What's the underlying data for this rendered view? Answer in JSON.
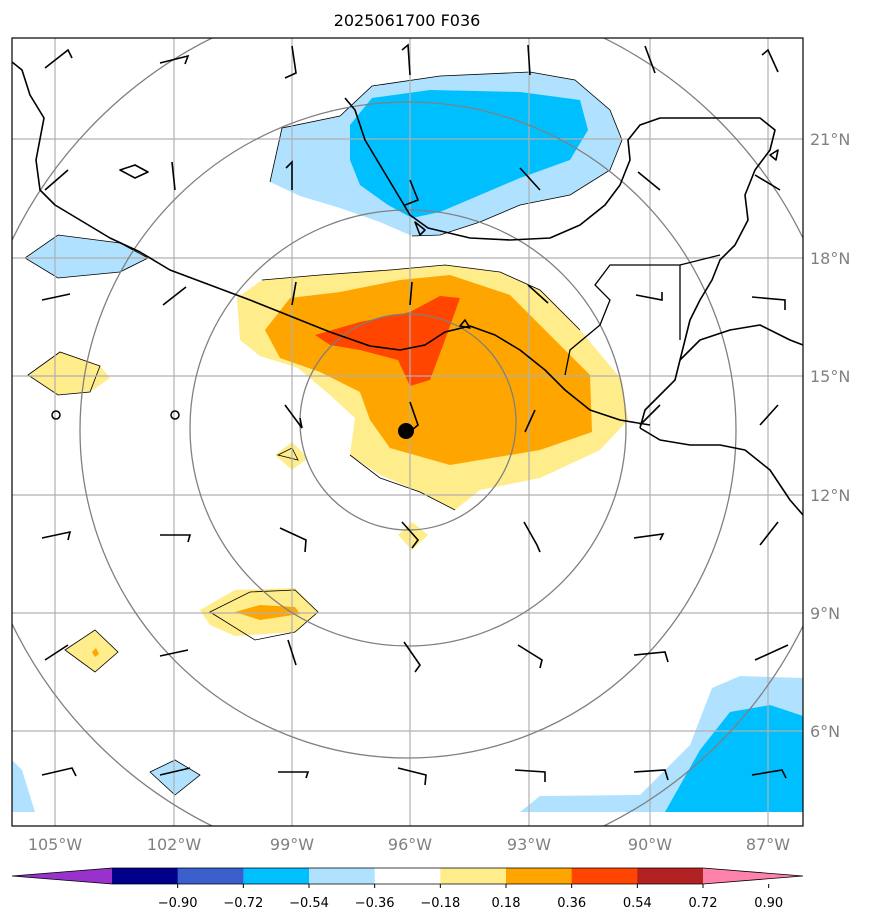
{
  "title": "2025061700 F036",
  "lon_labels": [
    "105°W",
    "102°W",
    "99°W",
    "96°W",
    "93°W",
    "90°W",
    "87°W"
  ],
  "lat_labels": [
    "21°N",
    "18°N",
    "15°N",
    "12°N",
    "9°N",
    "6°N"
  ],
  "colorbar": {
    "ticks": [
      "−0.90",
      "−0.72",
      "−0.54",
      "−0.36",
      "−0.18",
      "0.18",
      "0.36",
      "0.54",
      "0.72",
      "0.90"
    ],
    "colors": [
      "#9932cc",
      "#00008b",
      "#3a5fcd",
      "#00bfff",
      "#b0e2ff",
      "#ffffff",
      "#ffec8b",
      "#ffa500",
      "#ff4500",
      "#b22222",
      "#ff82ab"
    ]
  },
  "center_marker": {
    "lon": -96.0,
    "lat": 13.6
  },
  "field_colors": {
    "light_blue": "#b0e2ff",
    "blue": "#00bfff",
    "light_yellow": "#ffec8b",
    "orange": "#ffa500",
    "red_orange": "#ff4500"
  }
}
